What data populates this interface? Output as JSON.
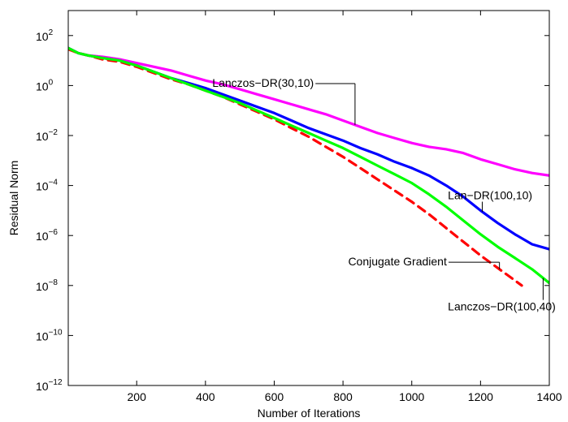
{
  "chart_data": {
    "type": "line",
    "xlabel": "Number of Iterations",
    "ylabel": "Residual Norm",
    "xlim": [
      1,
      1400
    ],
    "ylim_exponent": [
      -12,
      3
    ],
    "yscale": "log",
    "grid": false,
    "x_ticks": [
      {
        "value": 200,
        "label": "200"
      },
      {
        "value": 400,
        "label": "400"
      },
      {
        "value": 600,
        "label": "600"
      },
      {
        "value": 800,
        "label": "800"
      },
      {
        "value": 1000,
        "label": "1000"
      },
      {
        "value": 1200,
        "label": "1200"
      },
      {
        "value": 1400,
        "label": "1400"
      }
    ],
    "y_ticks": [
      {
        "exponent": 2,
        "label": "10",
        "sup": "2"
      },
      {
        "exponent": 0,
        "label": "10",
        "sup": "0"
      },
      {
        "exponent": -2,
        "label": "10",
        "sup": "−2"
      },
      {
        "exponent": -4,
        "label": "10",
        "sup": "−4"
      },
      {
        "exponent": -6,
        "label": "10",
        "sup": "−6"
      },
      {
        "exponent": -8,
        "label": "10",
        "sup": "−8"
      },
      {
        "exponent": -10,
        "label": "10",
        "sup": "−10"
      },
      {
        "exponent": -12,
        "label": "10",
        "sup": "−12"
      }
    ],
    "series": [
      {
        "name": "Lanczos−DR(30,10)",
        "color": "#ff00ff",
        "style": "solid",
        "x": [
          1,
          30,
          60,
          100,
          150,
          200,
          250,
          300,
          350,
          400,
          450,
          500,
          550,
          600,
          650,
          700,
          750,
          800,
          850,
          900,
          950,
          1000,
          1050,
          1100,
          1150,
          1200,
          1250,
          1300,
          1350,
          1400
        ],
        "log10_y": [
          1.5,
          1.3,
          1.2,
          1.15,
          1.05,
          0.9,
          0.75,
          0.6,
          0.4,
          0.2,
          0.05,
          -0.15,
          -0.35,
          -0.55,
          -0.75,
          -0.95,
          -1.15,
          -1.4,
          -1.65,
          -1.9,
          -2.1,
          -2.3,
          -2.45,
          -2.55,
          -2.7,
          -2.95,
          -3.15,
          -3.35,
          -3.5,
          -3.6
        ]
      },
      {
        "name": "Lan−DR(100,10)",
        "color": "#0000ff",
        "style": "solid",
        "x": [
          1,
          30,
          60,
          100,
          150,
          200,
          250,
          300,
          350,
          400,
          450,
          500,
          550,
          600,
          650,
          700,
          750,
          800,
          850,
          900,
          950,
          1000,
          1050,
          1100,
          1150,
          1200,
          1250,
          1300,
          1350,
          1400
        ],
        "log10_y": [
          1.5,
          1.3,
          1.2,
          1.1,
          1.0,
          0.8,
          0.55,
          0.3,
          0.1,
          -0.1,
          -0.35,
          -0.6,
          -0.85,
          -1.1,
          -1.4,
          -1.7,
          -1.95,
          -2.2,
          -2.5,
          -2.75,
          -3.05,
          -3.3,
          -3.6,
          -4.0,
          -4.45,
          -5.0,
          -5.5,
          -5.95,
          -6.35,
          -6.55
        ]
      },
      {
        "name": "Conjugate Gradient",
        "color": "#ff0000",
        "style": "dashed",
        "x": [
          1,
          30,
          60,
          100,
          150,
          200,
          250,
          300,
          350,
          400,
          450,
          500,
          550,
          600,
          650,
          700,
          750,
          800,
          850,
          900,
          950,
          1000,
          1050,
          1100,
          1150,
          1200,
          1250,
          1300,
          1320
        ],
        "log10_y": [
          1.45,
          1.3,
          1.2,
          1.05,
          0.95,
          0.75,
          0.5,
          0.25,
          0.05,
          -0.2,
          -0.45,
          -0.75,
          -1.05,
          -1.35,
          -1.7,
          -2.05,
          -2.45,
          -2.85,
          -3.3,
          -3.75,
          -4.2,
          -4.65,
          -5.15,
          -5.7,
          -6.25,
          -6.8,
          -7.3,
          -7.8,
          -8.0
        ]
      },
      {
        "name": "Lanczos−DR(100,40)",
        "color": "#00ff00",
        "style": "solid",
        "x": [
          1,
          30,
          60,
          100,
          150,
          200,
          250,
          300,
          350,
          400,
          450,
          500,
          550,
          600,
          650,
          700,
          750,
          800,
          850,
          900,
          950,
          1000,
          1050,
          1100,
          1150,
          1200,
          1250,
          1300,
          1350,
          1400
        ],
        "log10_y": [
          1.5,
          1.3,
          1.2,
          1.1,
          1.0,
          0.8,
          0.55,
          0.3,
          0.05,
          -0.2,
          -0.45,
          -0.7,
          -1.0,
          -1.3,
          -1.6,
          -1.9,
          -2.2,
          -2.5,
          -2.85,
          -3.2,
          -3.55,
          -3.9,
          -4.35,
          -4.85,
          -5.4,
          -5.95,
          -6.45,
          -6.9,
          -7.35,
          -7.9
        ]
      }
    ],
    "annotations": [
      {
        "text": "Lanczos−DR(30,10)",
        "series": 0,
        "at_x": 835,
        "text_x": 420,
        "text_log10_y": -0.05
      },
      {
        "text": "Lan−DR(100,10)",
        "series": 1,
        "at_x": 1205,
        "text_x": 1105,
        "text_log10_y": -4.55
      },
      {
        "text": "Conjugate Gradient",
        "series": 2,
        "at_x": 1255,
        "text_x": 815,
        "text_log10_y": -7.2
      },
      {
        "text": "Lanczos−DR(100,40)",
        "series": 3,
        "at_x": 1382,
        "text_x": 1105,
        "text_log10_y": -9.0
      }
    ]
  }
}
